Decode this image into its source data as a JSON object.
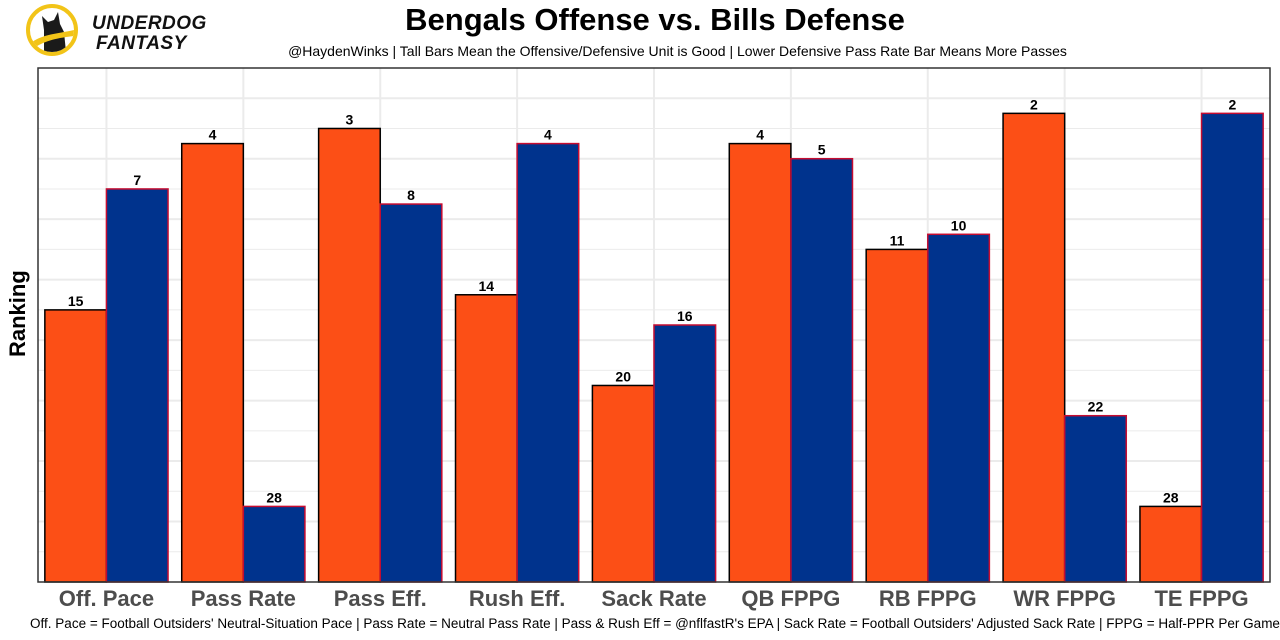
{
  "logo": {
    "icon": "underdog-dog-icon",
    "line1": "UNDERDOG",
    "line2": "FANTASY",
    "ring_color": "#f2c418"
  },
  "colors": {
    "offense_fill": "#fc4f16",
    "offense_stroke": "#000000",
    "defense_fill": "#00338d",
    "defense_stroke": "#c60c30",
    "grid": "#ebebeb",
    "panel_border": "#333333"
  },
  "chart_data": {
    "type": "bar",
    "title": "Bengals Offense vs. Bills Defense",
    "subtitle": "@HaydenWinks | Tall Bars Mean the Offensive/Defensive Unit is Good | Lower Defensive Pass Rate Bar Means More Passes",
    "caption": "Off. Pace = Football Outsiders' Neutral-Situation Pace | Pass Rate = Neutral Pass Rate | Pass & Rush Eff = @nflfastR's EPA | Sack Rate = Football Outsiders' Adjusted Sack Rate | FPPG = Half-PPR Per Game",
    "xlabel": "",
    "ylabel": "Ranking",
    "categories": [
      "Off. Pace",
      "Pass Rate",
      "Pass Eff.",
      "Rush Eff.",
      "Sack Rate",
      "QB FPPG",
      "RB FPPG",
      "WR FPPG",
      "TE FPPG"
    ],
    "series": [
      {
        "name": "Bengals Offense",
        "ranks": [
          15,
          4,
          3,
          14,
          20,
          4,
          11,
          2,
          28
        ]
      },
      {
        "name": "Bills Defense",
        "ranks": [
          7,
          28,
          8,
          4,
          16,
          5,
          10,
          22,
          2
        ]
      }
    ],
    "value_transform": "bar height = 33 - rank",
    "ylim": [
      0,
      34
    ],
    "y_ticks_shown": false,
    "grid": true,
    "legend": "none"
  }
}
